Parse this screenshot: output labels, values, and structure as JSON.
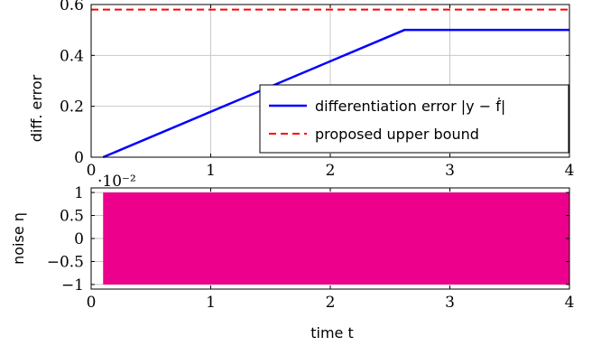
{
  "chart_data": [
    {
      "type": "line",
      "ylabel": "diff. error",
      "xlim": [
        0,
        4
      ],
      "ylim": [
        0,
        0.6
      ],
      "x_ticks": [
        "0",
        "1",
        "2",
        "3",
        "4"
      ],
      "y_ticks": [
        "0",
        "0.2",
        "0.4",
        "0.6"
      ],
      "grid": true,
      "legend_position": "bottom-right",
      "series": [
        {
          "name": "differentiation error |y − ḟ|",
          "style": "solid",
          "color": "#0000ff",
          "points": [
            [
              0.1,
              0.0
            ],
            [
              2.62,
              0.5
            ],
            [
              4.0,
              0.5
            ]
          ]
        },
        {
          "name": "proposed upper bound",
          "style": "dashed",
          "color": "#ff0000",
          "points": [
            [
              0.0,
              0.58
            ],
            [
              4.0,
              0.58
            ]
          ]
        }
      ]
    },
    {
      "type": "area",
      "ylabel": "noise η",
      "xlabel": "time t",
      "y_scale_label": "·10⁻²",
      "xlim": [
        0,
        4
      ],
      "ylim": [
        -1.1,
        1.1
      ],
      "x_ticks": [
        "0",
        "1",
        "2",
        "3",
        "4"
      ],
      "y_ticks": [
        "−1",
        "−0.5",
        "0",
        "0.5",
        "1"
      ],
      "grid": true,
      "series": [
        {
          "name": "noise",
          "color": "#ec008c",
          "x_start": 0.1,
          "x_end": 4.0,
          "min": -1,
          "max": 1
        }
      ]
    }
  ]
}
